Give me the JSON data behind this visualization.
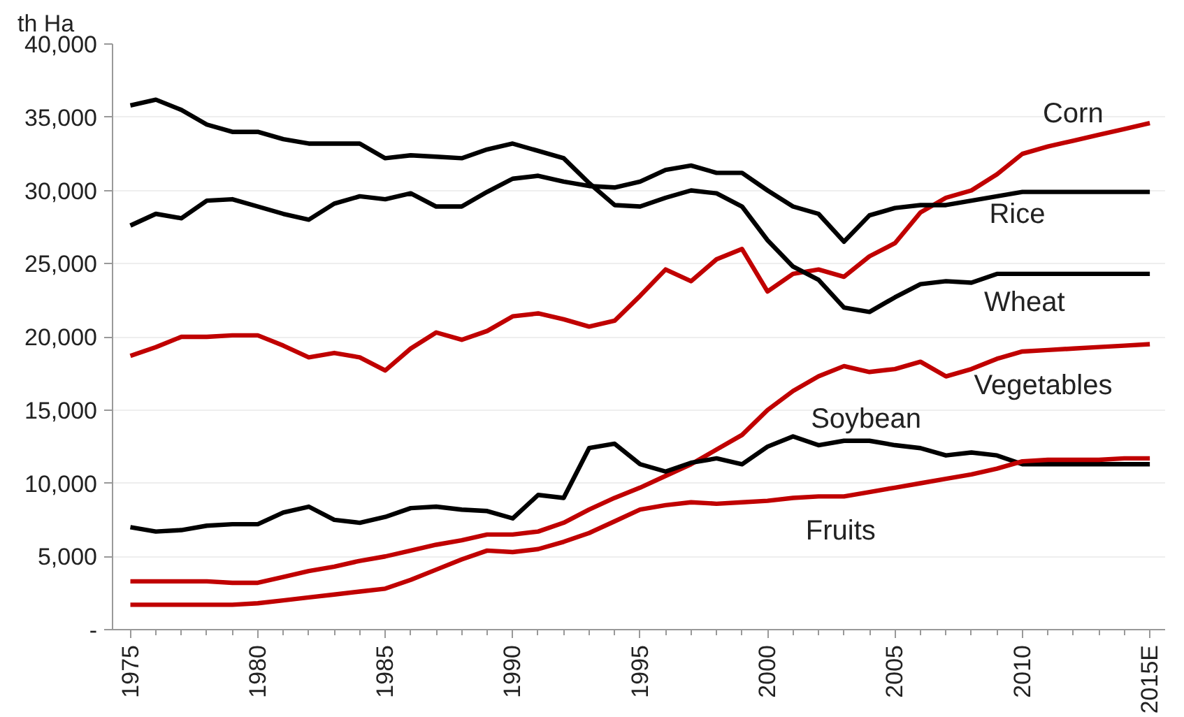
{
  "chart_data": {
    "type": "line",
    "ylabel": "th Ha",
    "x": [
      1975,
      1976,
      1977,
      1978,
      1979,
      1980,
      1981,
      1982,
      1983,
      1984,
      1985,
      1986,
      1987,
      1988,
      1989,
      1990,
      1991,
      1992,
      1993,
      1994,
      1995,
      1996,
      1997,
      1998,
      1999,
      2000,
      2001,
      2002,
      2003,
      2004,
      2005,
      2006,
      2007,
      2008,
      2009,
      2010,
      2011,
      2012,
      2013,
      2014,
      2015
    ],
    "series": [
      {
        "name": "Corn",
        "color": "#c00000",
        "values": [
          18700,
          19300,
          20000,
          20000,
          20100,
          20100,
          19400,
          18600,
          18900,
          18600,
          17700,
          19200,
          20300,
          19800,
          20400,
          21400,
          21600,
          21200,
          20700,
          21100,
          22800,
          24600,
          23800,
          25300,
          26000,
          23100,
          24300,
          24600,
          24100,
          25500,
          26400,
          28500,
          29500,
          30000,
          31100,
          32500,
          33000,
          33400,
          33800,
          34200,
          34600
        ]
      },
      {
        "name": "Rice",
        "color": "#000000",
        "values": [
          27600,
          28400,
          28100,
          29300,
          29400,
          28900,
          28400,
          28000,
          29100,
          29600,
          29400,
          29800,
          28900,
          28900,
          29900,
          30800,
          31000,
          30600,
          30300,
          30200,
          30600,
          31400,
          31700,
          31200,
          31200,
          30000,
          28900,
          28400,
          26500,
          28300,
          28800,
          29000,
          29000,
          29300,
          29600,
          29900,
          29900,
          29900,
          29900,
          29900,
          29900
        ]
      },
      {
        "name": "Wheat",
        "color": "#000000",
        "values": [
          35800,
          36200,
          35500,
          34500,
          34000,
          34000,
          33500,
          33200,
          33200,
          33200,
          32200,
          32400,
          32300,
          32200,
          32800,
          33200,
          32700,
          32200,
          30500,
          29000,
          28900,
          29500,
          30000,
          29800,
          28900,
          26600,
          24800,
          23900,
          22000,
          21700,
          22700,
          23600,
          23800,
          23700,
          24300,
          24300,
          24300,
          24300,
          24300,
          24300,
          24300
        ]
      },
      {
        "name": "Vegetables",
        "color": "#c00000",
        "values": [
          3300,
          3300,
          3300,
          3300,
          3200,
          3200,
          3600,
          4000,
          4300,
          4700,
          5000,
          5400,
          5800,
          6100,
          6500,
          6500,
          6700,
          7300,
          8200,
          9000,
          9700,
          10500,
          11300,
          12300,
          13300,
          15000,
          16300,
          17300,
          18000,
          17600,
          17800,
          18300,
          17300,
          17800,
          18500,
          19000,
          19100,
          19200,
          19300,
          19400,
          19500
        ]
      },
      {
        "name": "Soybean",
        "color": "#000000",
        "values": [
          7000,
          6700,
          6800,
          7100,
          7200,
          7200,
          8000,
          8400,
          7500,
          7300,
          7700,
          8300,
          8400,
          8200,
          8100,
          7600,
          9200,
          9000,
          12400,
          12700,
          11300,
          10800,
          11400,
          11700,
          11300,
          12500,
          13200,
          12600,
          12900,
          12900,
          12600,
          12400,
          11900,
          12100,
          11900,
          11300,
          11300,
          11300,
          11300,
          11300,
          11300
        ]
      },
      {
        "name": "Fruits",
        "color": "#c00000",
        "values": [
          1700,
          1700,
          1700,
          1700,
          1700,
          1800,
          2000,
          2200,
          2400,
          2600,
          2800,
          3400,
          4100,
          4800,
          5400,
          5300,
          5500,
          6000,
          6600,
          7400,
          8200,
          8500,
          8700,
          8600,
          8700,
          8800,
          9000,
          9100,
          9100,
          9400,
          9700,
          10000,
          10300,
          10600,
          11000,
          11500,
          11600,
          11600,
          11600,
          11700,
          11700
        ]
      }
    ],
    "xlim": [
      1974.3,
      2015.6
    ],
    "xticks": [
      1975,
      1980,
      1985,
      1990,
      1995,
      2000,
      2005,
      2010,
      {
        "value": 2015,
        "label": "2015E"
      }
    ],
    "ylim": [
      0,
      40000
    ],
    "yticks": [
      {
        "value": 0,
        "label": "-"
      },
      {
        "value": 5000,
        "label": "5,000"
      },
      {
        "value": 10000,
        "label": "10,000"
      },
      {
        "value": 15000,
        "label": "15,000"
      },
      {
        "value": 20000,
        "label": "20,000"
      },
      {
        "value": 25000,
        "label": "25,000"
      },
      {
        "value": 30000,
        "label": "30,000"
      },
      {
        "value": 35000,
        "label": "35,000"
      },
      {
        "value": 40000,
        "label": "40,000"
      }
    ],
    "grid": "y",
    "marker": "none",
    "line_style": "solid"
  }
}
